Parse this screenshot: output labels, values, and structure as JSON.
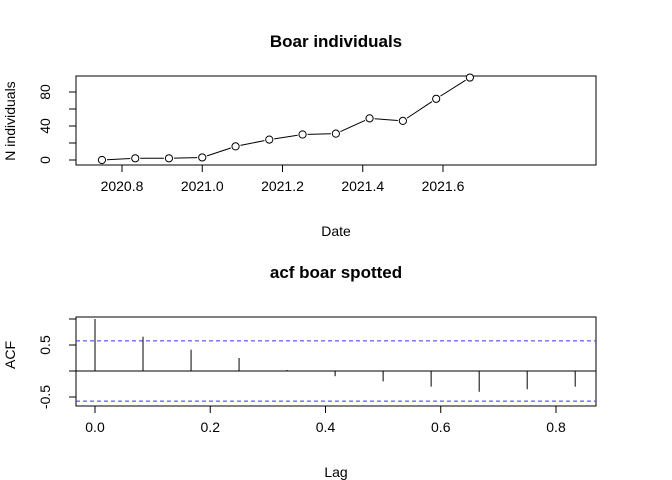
{
  "chart_data": [
    {
      "type": "line",
      "title": "Boar individuals",
      "xlabel": "Date",
      "ylabel": "N individuals",
      "xlim": [
        2020.7,
        2021.7
      ],
      "ylim": [
        0,
        100
      ],
      "xticks": [
        "2020.8",
        "2021.0",
        "2021.2",
        "2021.4",
        "2021.6"
      ],
      "yticks": [
        "0",
        "40",
        "80"
      ],
      "grid": false,
      "markers": "open-circle",
      "x": [
        2020.75,
        2020.833,
        2020.917,
        2021.0,
        2021.083,
        2021.167,
        2021.25,
        2021.333,
        2021.417,
        2021.5,
        2021.583,
        2021.667
      ],
      "y": [
        0,
        2,
        2,
        3,
        16,
        24,
        30,
        31,
        49,
        46,
        72,
        97
      ]
    },
    {
      "type": "bar",
      "title": "acf boar spotted",
      "xlabel": "Lag",
      "ylabel": "ACF",
      "xlim": [
        0,
        0.833
      ],
      "ylim": [
        -0.5,
        1.0
      ],
      "xticks": [
        "0.0",
        "0.2",
        "0.4",
        "0.6",
        "0.8"
      ],
      "yticks": [
        "-0.5",
        "0.5"
      ],
      "grid": false,
      "confidence_bound": 0.58,
      "confidence_color": "#3333ff",
      "x": [
        0,
        0.0833,
        0.1667,
        0.25,
        0.3333,
        0.4167,
        0.5,
        0.5833,
        0.6667,
        0.75,
        0.8333
      ],
      "values": [
        1.0,
        0.66,
        0.41,
        0.25,
        0.02,
        -0.1,
        -0.2,
        -0.3,
        -0.4,
        -0.35,
        -0.3
      ]
    }
  ]
}
